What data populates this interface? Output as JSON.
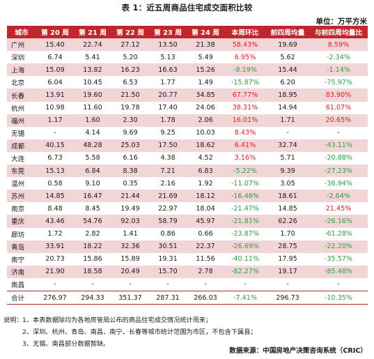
{
  "title": "表 1：近五周商品住宅成交面积比较",
  "unit": "单位：万平方米",
  "columns": [
    "城市",
    "第 20 周",
    "第 21 周",
    "第 22 周",
    "第 23 周",
    "第 24 周",
    "本周环比",
    "前四周均量",
    "与前四周均量比"
  ],
  "rows": [
    {
      "city": "广州",
      "w20": "15.40",
      "w21": "22.74",
      "w22": "27.12",
      "w23": "13.50",
      "w24": "21.38",
      "wow": "58.43%",
      "avg4": "19.69",
      "vs4": "8.59%",
      "hl": true
    },
    {
      "city": "深圳",
      "w20": "6.74",
      "w21": "5.41",
      "w22": "5.20",
      "w23": "5.13",
      "w24": "5.49",
      "wow": "6.95%",
      "avg4": "5.62",
      "vs4": "-2.34%",
      "hl": false
    },
    {
      "city": "上海",
      "w20": "15.09",
      "w21": "13.82",
      "w22": "16.23",
      "w23": "16.63",
      "w24": "15.26",
      "wow": "-8.19%",
      "avg4": "15.44",
      "vs4": "-1.14%",
      "hl": true
    },
    {
      "city": "北京",
      "w20": "6.04",
      "w21": "10.45",
      "w22": "6.53",
      "w23": "1.77",
      "w24": "1.49",
      "wow": "-15.87%",
      "avg4": "6.20",
      "vs4": "-75.97%",
      "hl": false
    },
    {
      "city": "长春",
      "w20": "13.91",
      "w21": "19.60",
      "w22": "21.50",
      "w23": "20.77",
      "w24": "34.85",
      "wow": "67.77%",
      "avg4": "18.95",
      "vs4": "83.90%",
      "hl": true
    },
    {
      "city": "杭州",
      "w20": "10.98",
      "w21": "11.60",
      "w22": "19.78",
      "w23": "17.40",
      "w24": "24.06",
      "wow": "38.31%",
      "avg4": "14.94",
      "vs4": "61.07%",
      "hl": false
    },
    {
      "city": "福州",
      "w20": "1.17",
      "w21": "1.60",
      "w22": "2.30",
      "w23": "1.78",
      "w24": "2.06",
      "wow": "16.01%",
      "avg4": "1.71",
      "vs4": "20.65%",
      "hl": true
    },
    {
      "city": "无锡",
      "w20": "-",
      "w21": "4.14",
      "w22": "9.69",
      "w23": "9.25",
      "w24": "10.03",
      "wow": "8.43%",
      "avg4": "-",
      "vs4": "-",
      "hl": false
    },
    {
      "city": "成都",
      "w20": "40.15",
      "w21": "48.28",
      "w22": "25.03",
      "w23": "17.50",
      "w24": "18.62",
      "wow": "6.41%",
      "avg4": "32.74",
      "vs4": "-43.11%",
      "hl": true
    },
    {
      "city": "大连",
      "w20": "6.73",
      "w21": "5.58",
      "w22": "6.16",
      "w23": "4.38",
      "w24": "4.52",
      "wow": "3.16%",
      "avg4": "5.71",
      "vs4": "-20.88%",
      "hl": false
    },
    {
      "city": "东莞",
      "w20": "15.13",
      "w21": "6.84",
      "w22": "8.38",
      "w23": "7.21",
      "w24": "6.83",
      "wow": "-5.22%",
      "avg4": "9.39",
      "vs4": "-27.23%",
      "hl": true
    },
    {
      "city": "温州",
      "w20": "0.58",
      "w21": "9.10",
      "w22": "0.35",
      "w23": "2.16",
      "w24": "1.92",
      "wow": "-11.07%",
      "avg4": "3.05",
      "vs4": "-36.94%",
      "hl": false
    },
    {
      "city": "苏州",
      "w20": "14.85",
      "w21": "16.47",
      "w22": "21.44",
      "w23": "21.69",
      "w24": "18.12",
      "wow": "-16.46%",
      "avg4": "18.61",
      "vs4": "-2.64%",
      "hl": true
    },
    {
      "city": "南京",
      "w20": "8.48",
      "w21": "8.45",
      "w22": "19.49",
      "w23": "22.97",
      "w24": "18.04",
      "wow": "-21.47%",
      "avg4": "14.85",
      "vs4": "21.45%",
      "hl": false
    },
    {
      "city": "重庆",
      "w20": "43.46",
      "w21": "54.76",
      "w22": "92.03",
      "w23": "58.79",
      "w24": "45.97",
      "wow": "-21.81%",
      "avg4": "62.26",
      "vs4": "-26.16%",
      "hl": true
    },
    {
      "city": "廊坊",
      "w20": "1.72",
      "w21": "2.82",
      "w22": "1.41",
      "w23": "0.86",
      "w24": "0.66",
      "wow": "-23.87%",
      "avg4": "1.70",
      "vs4": "-61.28%",
      "hl": false
    },
    {
      "city": "青岛",
      "w20": "33.91",
      "w21": "18.22",
      "w22": "32.36",
      "w23": "30.51",
      "w24": "22.37",
      "wow": "-26.69%",
      "avg4": "28.75",
      "vs4": "-22.20%",
      "hl": true
    },
    {
      "city": "南宁",
      "w20": "20.73",
      "w21": "15.86",
      "w22": "15.89",
      "w23": "19.31",
      "w24": "11.56",
      "wow": "-40.11%",
      "avg4": "17.95",
      "vs4": "-35.57%",
      "hl": false
    },
    {
      "city": "济南",
      "w20": "21.90",
      "w21": "18.58",
      "w22": "20.49",
      "w23": "15.70",
      "w24": "2.78",
      "wow": "-82.27%",
      "avg4": "19.17",
      "vs4": "-85.48%",
      "hl": true
    },
    {
      "city": "南昌",
      "w20": "-",
      "w21": "-",
      "w22": "-",
      "w23": "-",
      "w24": "-",
      "wow": "-",
      "avg4": "-",
      "vs4": "-",
      "hl": false
    }
  ],
  "total": {
    "city": "合计",
    "w20": "276.97",
    "w21": "294.33",
    "w22": "351.37",
    "w23": "287.31",
    "w24": "266.03",
    "wow": "-7.41%",
    "avg4": "296.73",
    "vs4": "-10.35%"
  },
  "notes": [
    {
      "lead": "说明：",
      "text": "1、本表数据除均为各地房管局公布的商品住宅成交情况统计而来；"
    },
    {
      "lead": "",
      "text": "2、深圳、杭州、青岛、南昌、南宁、长春等城市统计范围为市区，不包含下属县；"
    },
    {
      "lead": "",
      "text": "3、无锡、南昌部分数据暂缺。"
    }
  ],
  "source": "数据来源：中国房地产决策咨询系统（CRIC）",
  "colors": {
    "header_bg": "#c0272d",
    "highlight_row": "#f2d5d6",
    "negative": "#2f9e44",
    "positive": "#d61f26"
  }
}
